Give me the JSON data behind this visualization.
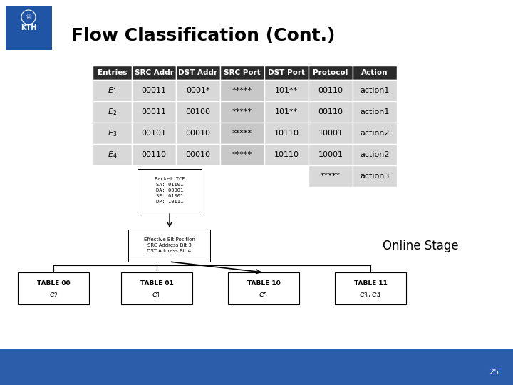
{
  "title": "Flow Classification (Cont.)",
  "title_fontsize": 18,
  "bg_color": "#ffffff",
  "footer_color": "#2b5daa",
  "page_number": "25",
  "table_header": [
    "Entries",
    "SRC Addr",
    "DST Addr",
    "SRC Port",
    "DST Port",
    "Protocol",
    "Action"
  ],
  "header_bg": "#2b2b2b",
  "header_fg": "#ffffff",
  "row_bg": "#d8d8d8",
  "src_port_bg": "#c8c8c8",
  "rows": [
    [
      "E_1",
      "00011",
      "0001*",
      "*****",
      "101**",
      "00110",
      "action1"
    ],
    [
      "E_2",
      "00011",
      "00100",
      "*****",
      "101**",
      "00110",
      "action1"
    ],
    [
      "E_3",
      "00101",
      "00010",
      "*****",
      "10110",
      "10001",
      "action2"
    ],
    [
      "E_4",
      "00110",
      "00010",
      "*****",
      "10110",
      "10001",
      "action2"
    ]
  ],
  "extra_row_protocol": "*****",
  "extra_row_action": "action3",
  "packet_box_text": "Packet TCP\nSA: 01101\nDA: 00001\nSP: 01001\nDP: 10111",
  "effective_box_text": "Effective Bit Position\nSRC Address Bit 3\nDST Address Bit 4",
  "online_stage_text": "Online Stage",
  "table_labels": [
    "TABLE 00",
    "TABLE 01",
    "TABLE 10",
    "TABLE 11"
  ],
  "table_entries": [
    "e_2",
    "e_1",
    "e_5",
    "e_3, e_4"
  ],
  "kth_color": "#2055a5"
}
